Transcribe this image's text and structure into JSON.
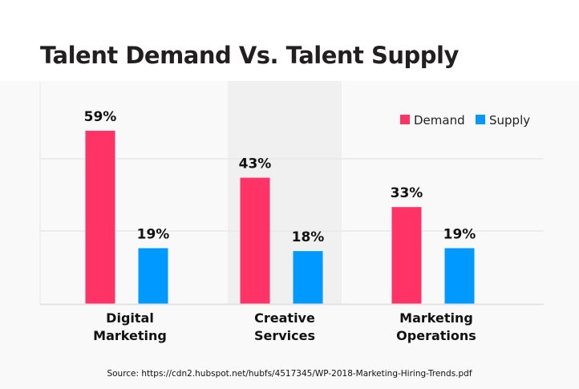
{
  "title": "Talent Demand Vs. Talent Supply",
  "source": "Source: https://cdn2.hubspot.net/hubfs/4517345/WP-2018-Marketing-Hiring-Trends.pdf",
  "colors": {
    "demand": "#ff3366",
    "supply": "#0099ff",
    "highlight": "#f0f0f0",
    "grid": "#e8e8e8",
    "text": "#111111"
  },
  "chart_data": {
    "type": "bar",
    "title": "Talent Demand Vs. Talent Supply",
    "categories": [
      "Digital Marketing",
      "Creative Services",
      "Marketing Operations"
    ],
    "category_lines": [
      [
        "Digital",
        "Marketing"
      ],
      [
        "Creative",
        "Services"
      ],
      [
        "Marketing",
        "Operations"
      ]
    ],
    "series": [
      {
        "name": "Demand",
        "values": [
          59,
          43,
          33
        ],
        "labels": [
          "59%",
          "43%",
          "33%"
        ]
      },
      {
        "name": "Supply",
        "values": [
          19,
          18,
          19
        ],
        "labels": [
          "19%",
          "18%",
          "19%"
        ]
      }
    ],
    "highlighted_category": "Creative Services",
    "xlabel": "",
    "ylabel": "",
    "ylim": [
      0,
      59
    ],
    "grid": true,
    "legend": "top-right",
    "unit": "%"
  }
}
